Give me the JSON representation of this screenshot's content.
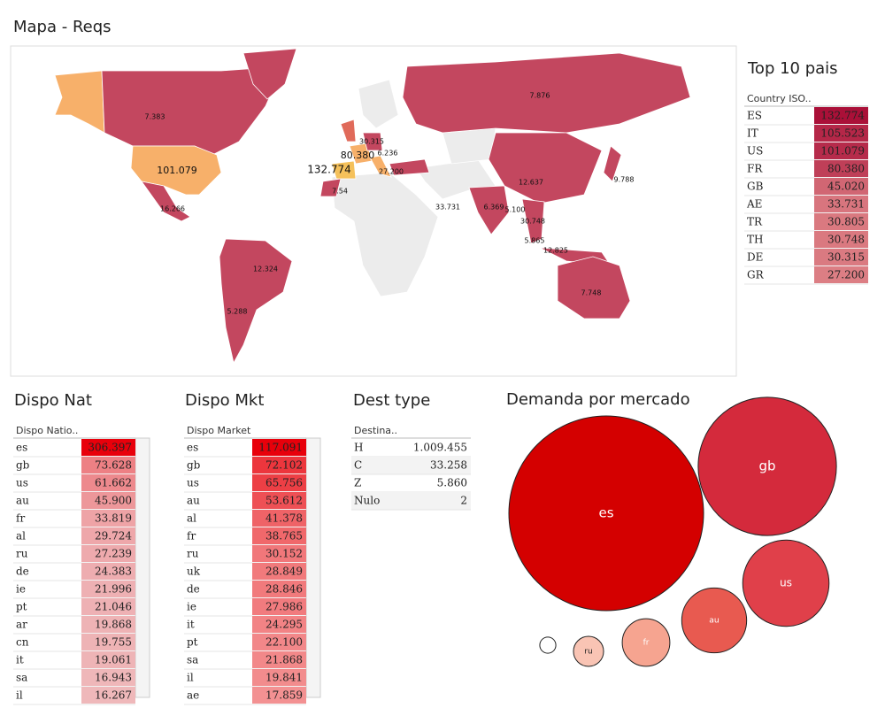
{
  "map": {
    "title": "Mapa - Reqs",
    "labels": [
      "7.383",
      "101.079",
      "16.266",
      "12.324",
      "5.288",
      "7.876",
      "12.637",
      "9.788",
      "6.369",
      "33.731",
      "5.100",
      "30.748",
      "5.865",
      "12.825",
      "7.748",
      "30.315",
      "80.380",
      "132.774",
      "6.236",
      "27.200",
      "7.54"
    ]
  },
  "top10": {
    "title": "Top 10 pais",
    "header": "Country ISO..",
    "rows": [
      {
        "key": "ES",
        "value": 132774,
        "label": "132.774"
      },
      {
        "key": "IT",
        "value": 105523,
        "label": "105.523"
      },
      {
        "key": "US",
        "value": 101079,
        "label": "101.079"
      },
      {
        "key": "FR",
        "value": 80380,
        "label": "80.380"
      },
      {
        "key": "GB",
        "value": 45020,
        "label": "45.020"
      },
      {
        "key": "AE",
        "value": 33731,
        "label": "33.731"
      },
      {
        "key": "TR",
        "value": 30805,
        "label": "30.805"
      },
      {
        "key": "TH",
        "value": 30748,
        "label": "30.748"
      },
      {
        "key": "DE",
        "value": 30315,
        "label": "30.315"
      },
      {
        "key": "GR",
        "value": 27200,
        "label": "27.200"
      }
    ]
  },
  "dispo_nat": {
    "title": "Dispo Nat",
    "header": "Dispo Natio..",
    "rows": [
      {
        "key": "es",
        "value": 306397,
        "label": "306.397"
      },
      {
        "key": "gb",
        "value": 73628,
        "label": "73.628"
      },
      {
        "key": "us",
        "value": 61662,
        "label": "61.662"
      },
      {
        "key": "au",
        "value": 45900,
        "label": "45.900"
      },
      {
        "key": "fr",
        "value": 33819,
        "label": "33.819"
      },
      {
        "key": "al",
        "value": 29724,
        "label": "29.724"
      },
      {
        "key": "ru",
        "value": 27239,
        "label": "27.239"
      },
      {
        "key": "de",
        "value": 24383,
        "label": "24.383"
      },
      {
        "key": "ie",
        "value": 21996,
        "label": "21.996"
      },
      {
        "key": "pt",
        "value": 21046,
        "label": "21.046"
      },
      {
        "key": "ar",
        "value": 19868,
        "label": "19.868"
      },
      {
        "key": "cn",
        "value": 19755,
        "label": "19.755"
      },
      {
        "key": "it",
        "value": 19061,
        "label": "19.061"
      },
      {
        "key": "sa",
        "value": 16943,
        "label": "16.943"
      },
      {
        "key": "il",
        "value": 16267,
        "label": "16.267"
      }
    ]
  },
  "dispo_mkt": {
    "title": "Dispo Mkt",
    "header": "Dispo Market",
    "rows": [
      {
        "key": "es",
        "value": 117091,
        "label": "117.091"
      },
      {
        "key": "gb",
        "value": 72102,
        "label": "72.102"
      },
      {
        "key": "us",
        "value": 65756,
        "label": "65.756"
      },
      {
        "key": "au",
        "value": 53612,
        "label": "53.612"
      },
      {
        "key": "al",
        "value": 41378,
        "label": "41.378"
      },
      {
        "key": "fr",
        "value": 38765,
        "label": "38.765"
      },
      {
        "key": "ru",
        "value": 30152,
        "label": "30.152"
      },
      {
        "key": "uk",
        "value": 28849,
        "label": "28.849"
      },
      {
        "key": "de",
        "value": 28846,
        "label": "28.846"
      },
      {
        "key": "ie",
        "value": 27986,
        "label": "27.986"
      },
      {
        "key": "it",
        "value": 24295,
        "label": "24.295"
      },
      {
        "key": "pt",
        "value": 22100,
        "label": "22.100"
      },
      {
        "key": "sa",
        "value": 21868,
        "label": "21.868"
      },
      {
        "key": "il",
        "value": 19841,
        "label": "19.841"
      },
      {
        "key": "ae",
        "value": 17859,
        "label": "17.859"
      }
    ]
  },
  "dest_type": {
    "title": "Dest type",
    "header": "Destina..",
    "rows": [
      {
        "key": "H",
        "value": 1009455,
        "label": "1.009.455"
      },
      {
        "key": "C",
        "value": 33258,
        "label": "33.258"
      },
      {
        "key": "Z",
        "value": 5860,
        "label": "5.860"
      },
      {
        "key": "Nulo",
        "value": 2
      }
    ]
  },
  "demanda": {
    "title": "Demanda por mercado",
    "bubbles": [
      {
        "label": "es",
        "value": 117,
        "color": "#d40000"
      },
      {
        "label": "gb",
        "value": 59,
        "color": "#d42a3c"
      },
      {
        "label": "us",
        "value": 23,
        "color": "#e0404a"
      },
      {
        "label": "au",
        "value": 13,
        "color": "#e85a50"
      },
      {
        "label": "fr",
        "value": 7,
        "color": "#f6a490"
      },
      {
        "label": "ru",
        "value": 2.8,
        "color": "#f9c4b4"
      },
      {
        "label": null,
        "value": 0.8,
        "color": "#ffffff"
      }
    ]
  }
}
